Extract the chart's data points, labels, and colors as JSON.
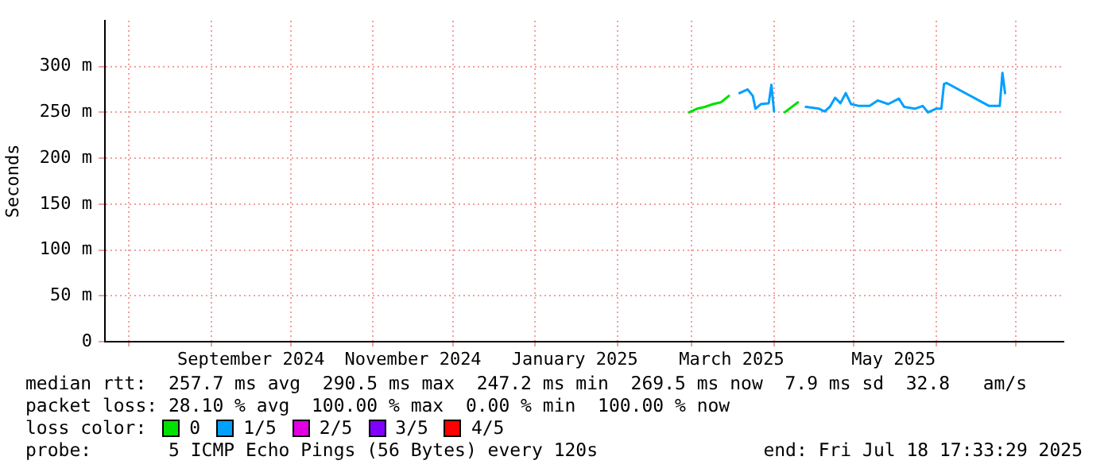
{
  "chart_data": {
    "type": "line",
    "ylabel": "Seconds",
    "x": [
      "2025-02-28",
      "2025-03-03",
      "2025-03-06",
      "2025-03-09",
      "2025-03-12",
      "2025-03-15",
      "2025-03-19",
      "2025-03-22",
      "2025-03-24",
      "2025-03-25",
      "2025-03-27",
      "2025-03-30",
      "2025-03-31",
      "2025-04-01",
      "2025-04-05",
      "2025-04-10",
      "2025-04-13",
      "2025-04-18",
      "2025-04-20",
      "2025-04-22",
      "2025-04-24",
      "2025-04-26",
      "2025-04-28",
      "2025-04-30",
      "2025-05-03",
      "2025-05-07",
      "2025-05-10",
      "2025-05-14",
      "2025-05-18",
      "2025-05-20",
      "2025-05-24",
      "2025-05-27",
      "2025-05-29",
      "2025-06-01",
      "2025-06-03",
      "2025-06-04",
      "2025-06-05",
      "2025-06-21",
      "2025-06-25",
      "2025-06-26",
      "2025-06-27"
    ],
    "series": [
      {
        "name": "0",
        "color": "#00e000",
        "values": [
          250,
          254,
          256,
          259,
          261,
          268,
          null,
          null,
          null,
          null,
          null,
          null,
          null,
          null,
          250,
          261,
          null,
          null,
          null,
          null,
          null,
          null,
          null,
          null,
          null,
          null,
          null,
          null,
          null,
          null,
          null,
          null,
          null,
          null,
          null,
          null,
          null,
          null,
          null,
          null,
          null
        ]
      },
      {
        "name": "1/5",
        "color": "#00a0ff",
        "values": [
          null,
          null,
          null,
          null,
          null,
          null,
          271,
          275,
          268,
          254,
          259,
          260,
          280,
          251,
          null,
          null,
          256,
          254,
          251,
          256,
          266,
          260,
          271,
          259,
          257,
          257,
          263,
          259,
          265,
          256,
          254,
          257,
          250,
          254,
          254,
          281,
          282,
          257,
          257,
          293,
          271
        ]
      },
      {
        "name": "2/5",
        "color": "#e000e0",
        "values": [
          null,
          null,
          null,
          null,
          null,
          null,
          null,
          null,
          null,
          null,
          null,
          null,
          null,
          null,
          null,
          null,
          null,
          null,
          null,
          null,
          null,
          null,
          null,
          null,
          null,
          null,
          null,
          null,
          null,
          null,
          null,
          null,
          null,
          null,
          null,
          null,
          null,
          null,
          null,
          null,
          null
        ]
      },
      {
        "name": "3/5",
        "color": "#8000ff",
        "values": [
          null,
          null,
          null,
          null,
          null,
          null,
          null,
          null,
          null,
          null,
          null,
          null,
          null,
          null,
          null,
          null,
          null,
          null,
          null,
          null,
          null,
          null,
          null,
          null,
          null,
          null,
          null,
          null,
          null,
          null,
          null,
          null,
          null,
          null,
          null,
          null,
          null,
          null,
          null,
          null,
          null
        ]
      },
      {
        "name": "4/5",
        "color": "#ff0000",
        "values": [
          null,
          null,
          null,
          null,
          null,
          null,
          null,
          null,
          null,
          null,
          null,
          null,
          null,
          null,
          null,
          null,
          null,
          null,
          null,
          null,
          null,
          null,
          null,
          null,
          null,
          null,
          null,
          null,
          null,
          null,
          null,
          null,
          null,
          null,
          null,
          null,
          null,
          null,
          null,
          null,
          null
        ]
      }
    ],
    "legend": "bottom",
    "legend_title": "loss color:",
    "xlim": [
      "2024-07-23",
      "2025-07-19"
    ],
    "xticks": [
      {
        "value": "2024-08-01",
        "label": null
      },
      {
        "value": "2024-09-01",
        "label": null
      },
      {
        "value": "2024-09-16",
        "label": "September 2024"
      },
      {
        "value": "2024-10-01",
        "label": null
      },
      {
        "value": "2024-11-01",
        "label": null
      },
      {
        "value": "2024-11-16",
        "label": "November 2024"
      },
      {
        "value": "2024-12-01",
        "label": null
      },
      {
        "value": "2025-01-01",
        "label": null
      },
      {
        "value": "2025-01-16",
        "label": "January 2025"
      },
      {
        "value": "2025-02-01",
        "label": null
      },
      {
        "value": "2025-03-01",
        "label": null
      },
      {
        "value": "2025-03-16",
        "label": "March 2025"
      },
      {
        "value": "2025-04-01",
        "label": null
      },
      {
        "value": "2025-05-01",
        "label": null
      },
      {
        "value": "2025-05-16",
        "label": "May 2025"
      },
      {
        "value": "2025-06-01",
        "label": null
      },
      {
        "value": "2025-07-01",
        "label": null
      }
    ],
    "ylim": [
      0,
      350
    ],
    "yticks": [
      {
        "value": 0,
        "label": "0"
      },
      {
        "value": 50,
        "label": "50 m"
      },
      {
        "value": 100,
        "label": "100 m"
      },
      {
        "value": 150,
        "label": "150 m"
      },
      {
        "value": 200,
        "label": "200 m"
      },
      {
        "value": 250,
        "label": "250 m"
      },
      {
        "value": 300,
        "label": "300 m"
      }
    ],
    "grid": true,
    "marker": "none",
    "line_style": "solid",
    "annotations": [
      "median rtt:  257.7 ms avg  290.5 ms max  247.2 ms min  269.5 ms now  7.9 ms sd  32.8   am/s",
      "packet loss: 28.10 % avg  100.00 % max  0.00 % min  100.00 % now",
      "probe:       5 ICMP Echo Pings (56 Bytes) every 120s",
      "end: Fri Jul 18 17:33:29 2025"
    ]
  }
}
